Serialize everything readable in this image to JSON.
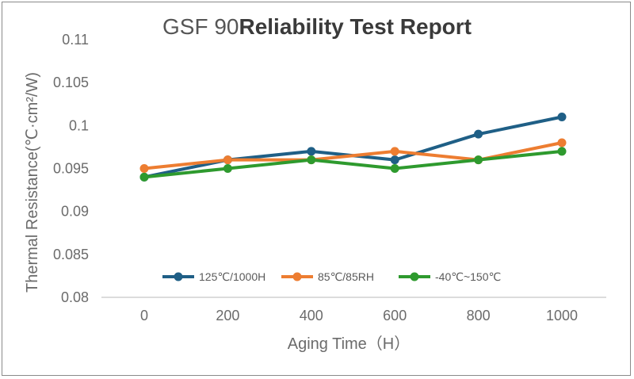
{
  "chart_data": {
    "type": "line",
    "title_prefix": "GSF 90",
    "title_bold": "Reliability Test Report",
    "xlabel": "Aging Time（H）",
    "ylabel": "Thermal Resistance(℃·cm²/W)",
    "x": [
      0,
      200,
      400,
      600,
      800,
      1000
    ],
    "x_tick_labels": [
      "0",
      "200",
      "400",
      "600",
      "800",
      "1000"
    ],
    "ylim": [
      0.08,
      0.11
    ],
    "y_ticks": [
      0.08,
      0.085,
      0.09,
      0.095,
      0.1,
      0.105,
      0.11
    ],
    "y_tick_labels": [
      "0.08",
      "0.085",
      "0.09",
      "0.095",
      "0.1",
      "0.105",
      "0.11"
    ],
    "legend_position": "bottom",
    "series": [
      {
        "name": "125℃/1000H",
        "color": "#1f5f86",
        "values": [
          0.094,
          0.096,
          0.097,
          0.096,
          0.099,
          0.101
        ]
      },
      {
        "name": "85℃/85RH",
        "color": "#ed7d31",
        "values": [
          0.095,
          0.096,
          0.096,
          0.097,
          0.096,
          0.098
        ]
      },
      {
        "name": "-40℃~150℃",
        "color": "#2e9a2e",
        "values": [
          0.094,
          0.095,
          0.096,
          0.095,
          0.096,
          0.097
        ]
      }
    ]
  }
}
